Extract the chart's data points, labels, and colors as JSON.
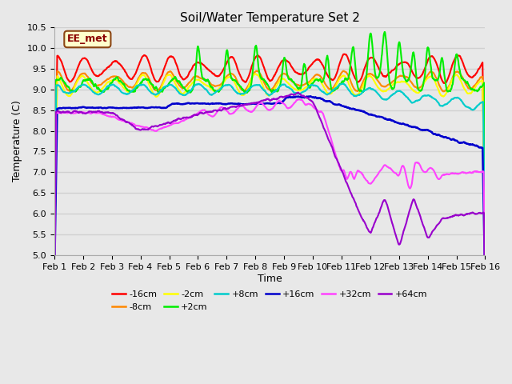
{
  "title": "Soil/Water Temperature Set 2",
  "xlabel": "Time",
  "ylabel": "Temperature (C)",
  "ylim": [
    5.0,
    10.5
  ],
  "annotation_text": "EE_met",
  "annotation_box_facecolor": "#ffffcc",
  "annotation_box_edgecolor": "#8B4513",
  "bg_color": "#e8e8e8",
  "grid_color": "#d0d0d0",
  "x_tick_labels": [
    "Feb 1",
    "Feb 2",
    "Feb 3",
    "Feb 4",
    "Feb 5",
    "Feb 6",
    "Feb 7",
    "Feb 8",
    "Feb 9",
    "Feb 10",
    "Feb 11",
    "Feb 12",
    "Feb 13",
    "Feb 14",
    "Feb 15",
    "Feb 16"
  ],
  "series": [
    {
      "label": "-16cm",
      "color": "#ff0000",
      "lw": 1.5
    },
    {
      "label": "-8cm",
      "color": "#ff8800",
      "lw": 1.5
    },
    {
      "label": "-2cm",
      "color": "#ffff00",
      "lw": 1.5
    },
    {
      "label": "+2cm",
      "color": "#00ee00",
      "lw": 1.5
    },
    {
      "label": "+8cm",
      "color": "#00cccc",
      "lw": 1.5
    },
    {
      "label": "+16cm",
      "color": "#0000cc",
      "lw": 1.8
    },
    {
      "label": "+32cm",
      "color": "#ff44ff",
      "lw": 1.5
    },
    {
      "label": "+64cm",
      "color": "#9900cc",
      "lw": 1.5
    }
  ]
}
